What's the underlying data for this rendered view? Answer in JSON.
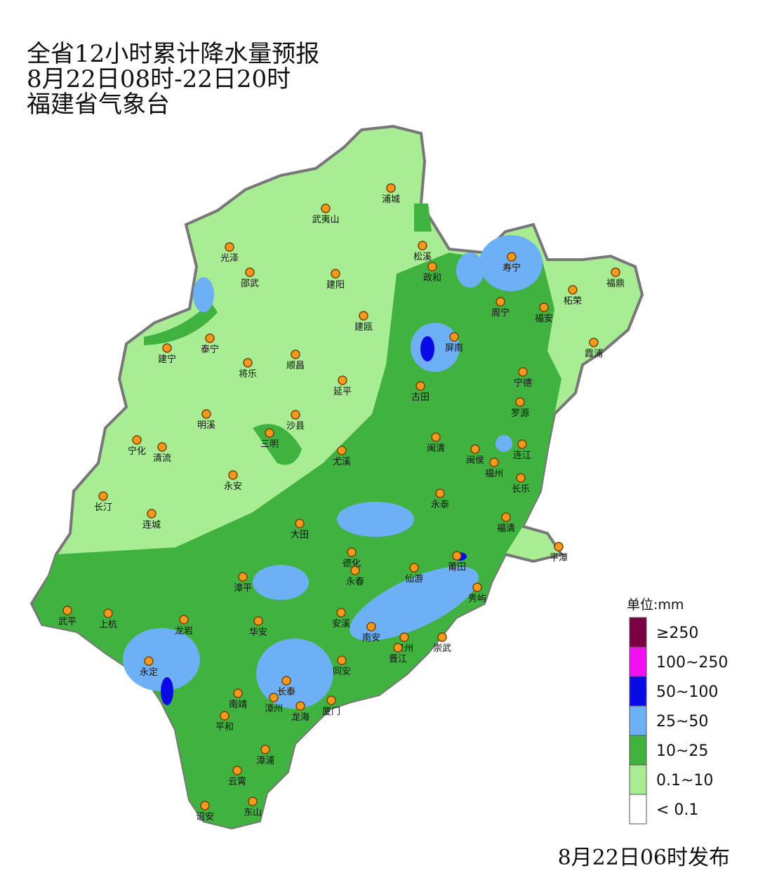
{
  "header": {
    "title": "全省12小时累计降水量预报",
    "period": "8月22日08时-22日20时",
    "issuer": "福建省气象台"
  },
  "cities": [
    "浦城",
    "武夷山",
    "光泽",
    "松溪",
    "寿宁",
    "政和",
    "邵武",
    "建阳",
    "福鼎",
    "柘荣",
    "周宁",
    "福安",
    "建瓯",
    "屏南",
    "泰宁",
    "建宁",
    "霞浦",
    "顺昌",
    "将乐",
    "宁德",
    "延平",
    "古田",
    "罗源",
    "明溪",
    "沙县",
    "宁化",
    "三明",
    "闽清",
    "闽侯",
    "清流",
    "连江",
    "尤溪",
    "福州",
    "长乐",
    "永安",
    "长汀",
    "永泰",
    "连城",
    "福清",
    "大田",
    "平潭",
    "德化",
    "莆田",
    "永春",
    "仙游",
    "漳平",
    "秀屿",
    "武平",
    "上杭",
    "龙岩",
    "安溪",
    "华安",
    "南安",
    "泉州",
    "崇武",
    "晋江",
    "同安",
    "永定",
    "长泰",
    "南靖",
    "漳州",
    "龙海",
    "厦门",
    "平和",
    "漳浦",
    "云霄",
    "东山",
    "诏安"
  ],
  "legend": {
    "title": "单位:mm",
    "items": [
      {
        "label": "≥250",
        "color": "#7a0044"
      },
      {
        "label": "100~250",
        "color": "#f010f0"
      },
      {
        "label": "50~100",
        "color": "#0a0ae6"
      },
      {
        "label": "25~50",
        "color": "#6eb0f5"
      },
      {
        "label": "10~25",
        "color": "#3fb23f"
      },
      {
        "label": "0.1~10",
        "color": "#a8ec94"
      },
      {
        "label": "< 0.1",
        "color": "#ffffff"
      }
    ]
  },
  "footer": "8月22日06时发布"
}
